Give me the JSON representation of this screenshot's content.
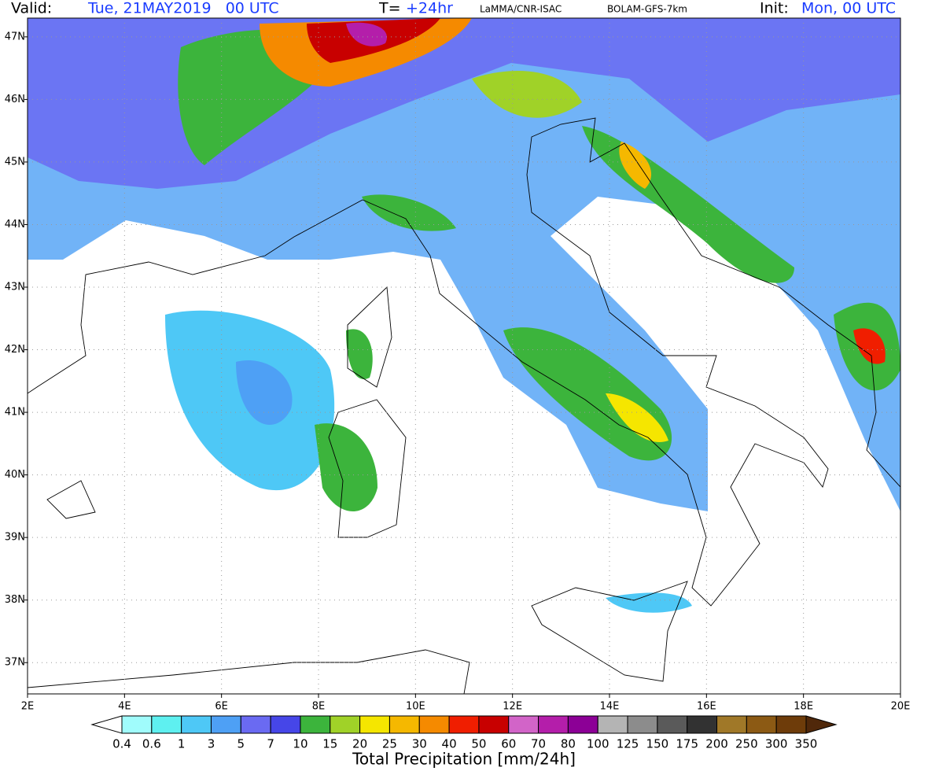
{
  "header": {
    "valid_label": "Valid:",
    "valid_time": "Tue, 21MAY2019   00 UTC",
    "lead_label": "T=",
    "lead_time": "+24hr",
    "source": "LaMMA/CNR-ISAC",
    "model": "BOLAM-GFS-7km",
    "init_label": "Init:",
    "init_time": "Mon, 00 UTC"
  },
  "map": {
    "xlim": [
      2,
      20
    ],
    "ylim": [
      36.5,
      47.3
    ],
    "xticks": [
      {
        "value": 2,
        "label": "2E"
      },
      {
        "value": 4,
        "label": "4E"
      },
      {
        "value": 6,
        "label": "6E"
      },
      {
        "value": 8,
        "label": "8E"
      },
      {
        "value": 10,
        "label": "10E"
      },
      {
        "value": 12,
        "label": "12E"
      },
      {
        "value": 14,
        "label": "14E"
      },
      {
        "value": 16,
        "label": "16E"
      },
      {
        "value": 18,
        "label": "18E"
      },
      {
        "value": 20,
        "label": "20E"
      }
    ],
    "yticks": [
      {
        "value": 37,
        "label": "37N"
      },
      {
        "value": 38,
        "label": "38N"
      },
      {
        "value": 39,
        "label": "39N"
      },
      {
        "value": 40,
        "label": "40N"
      },
      {
        "value": 41,
        "label": "41N"
      },
      {
        "value": 42,
        "label": "42N"
      },
      {
        "value": 43,
        "label": "43N"
      },
      {
        "value": 44,
        "label": "44N"
      },
      {
        "value": 45,
        "label": "45N"
      },
      {
        "value": 46,
        "label": "46N"
      },
      {
        "value": 47,
        "label": "47N"
      }
    ],
    "grid": true
  },
  "colorbar": {
    "title": "Total Precipitation [mm/24h]",
    "levels": [
      0.4,
      0.6,
      1,
      3,
      5,
      7,
      10,
      15,
      20,
      25,
      30,
      40,
      50,
      60,
      70,
      80,
      100,
      125,
      150,
      175,
      200,
      250,
      300,
      350
    ],
    "colors": [
      "#ffffff",
      "#a0fcfc",
      "#5ef0f0",
      "#4ec8f6",
      "#4ea0f5",
      "#6a6af2",
      "#4646e8",
      "#3cb43c",
      "#a0d228",
      "#f5e600",
      "#f5b800",
      "#f58a00",
      "#f01e00",
      "#c80000",
      "#d264c8",
      "#b41eaa",
      "#8c0096",
      "#b4b4b4",
      "#8c8c8c",
      "#5a5a5a",
      "#323232",
      "#a07828",
      "#8c5a14",
      "#6e3c0a",
      "#50280a"
    ]
  }
}
